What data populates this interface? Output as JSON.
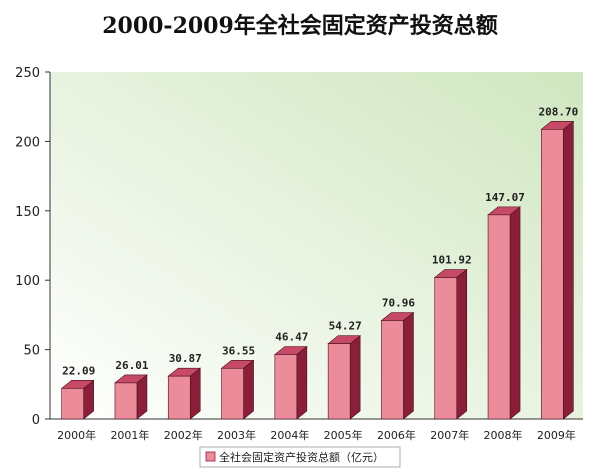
{
  "chart_data": {
    "type": "bar",
    "title": "2000-2009年全社会固定资产投资总额",
    "categories": [
      "2000年",
      "2001年",
      "2002年",
      "2003年",
      "2004年",
      "2005年",
      "2006年",
      "2007年",
      "2008年",
      "2009年"
    ],
    "series": [
      {
        "name": "全社会固定资产投资总额（亿元）",
        "values": [
          22.09,
          26.01,
          30.87,
          36.55,
          46.47,
          54.27,
          70.96,
          101.92,
          147.07,
          208.7
        ],
        "value_labels": [
          "22.09",
          "26.01",
          "30.87",
          "36.55",
          "46.47",
          "54.27",
          "70.96",
          "101.92",
          "147.07",
          "208.70"
        ]
      }
    ],
    "y_ticks": [
      "0",
      "50",
      "100",
      "150",
      "200",
      "250"
    ],
    "ylim": [
      0,
      250
    ],
    "grid": false,
    "legend": "bottom",
    "colors": {
      "bar_front": "#ec8b9a",
      "bar_side": "#8a1f3a",
      "bar_top": "#c64a66",
      "plot_bg_light": "#ffffff",
      "plot_bg_dark": "#cfe6bf"
    }
  }
}
